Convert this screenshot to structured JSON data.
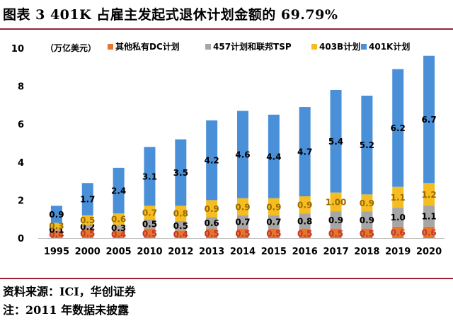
{
  "title": "图表 3   401K 占雇主发起式退休计划金额的 69.79%",
  "footnotes": [
    "资料来源：ICI，华创证券",
    "注：2011 年数据未披露"
  ],
  "colors": {
    "s1": "#e8752e",
    "s2": "#a6a6a6",
    "s3": "#f5bd1f",
    "s4": "#4a90d9",
    "rule": "#9b2335"
  },
  "chart_data": {
    "type": "bar",
    "stacked": true,
    "unit_label": "（万亿美元）",
    "categories": [
      "1995",
      "2000",
      "2005",
      "2010",
      "2012",
      "2013",
      "2014",
      "2015",
      "2016",
      "2017",
      "2018",
      "2019",
      "2020"
    ],
    "ylim": [
      0,
      10
    ],
    "yticks": [
      0,
      2,
      4,
      6,
      8,
      10
    ],
    "legend_position": "top",
    "series": [
      {
        "name": "其他私有DC计划",
        "values": [
          0.4,
          0.5,
          0.4,
          0.5,
          0.4,
          0.5,
          0.5,
          0.5,
          0.5,
          0.5,
          0.5,
          0.6,
          0.6
        ],
        "labels": [
          "0.4",
          "0.5",
          "0.4",
          "0.5",
          "0.4",
          "0.5",
          "0.5",
          "0.5",
          "0.5",
          "0.5",
          "0.5",
          "0.6",
          "0.6"
        ]
      },
      {
        "name": "457计划和联邦TSP",
        "values": [
          0.1,
          0.2,
          0.3,
          0.5,
          0.5,
          0.6,
          0.7,
          0.7,
          0.8,
          0.9,
          0.9,
          1.0,
          1.1
        ],
        "labels": [
          "0.1",
          "0.2",
          "0.3",
          "0.5",
          "0.5",
          "0.6",
          "0.7",
          "0.7",
          "0.8",
          "0.9",
          "0.9",
          "1.0",
          "1.1"
        ]
      },
      {
        "name": "403B计划",
        "values": [
          0.3,
          0.5,
          0.6,
          0.7,
          0.8,
          0.9,
          0.9,
          0.9,
          0.9,
          1.0,
          0.9,
          1.1,
          1.2
        ],
        "labels": [
          "0.3",
          "0.5",
          "0.6",
          "0.7",
          "0.8",
          "0.9",
          "0.9",
          "0.9",
          "0.9",
          "1.00",
          "0.9",
          "1.1",
          "1.2"
        ]
      },
      {
        "name": "401K计划",
        "values": [
          0.9,
          1.7,
          2.4,
          3.1,
          3.5,
          4.2,
          4.6,
          4.4,
          4.7,
          5.4,
          5.2,
          6.2,
          6.7
        ],
        "labels": [
          "0.9",
          "1.7",
          "2.4",
          "3.1",
          "3.5",
          "4.2",
          "4.6",
          "4.4",
          "4.7",
          "5.4",
          "5.2",
          "6.2",
          "6.7"
        ]
      }
    ]
  }
}
